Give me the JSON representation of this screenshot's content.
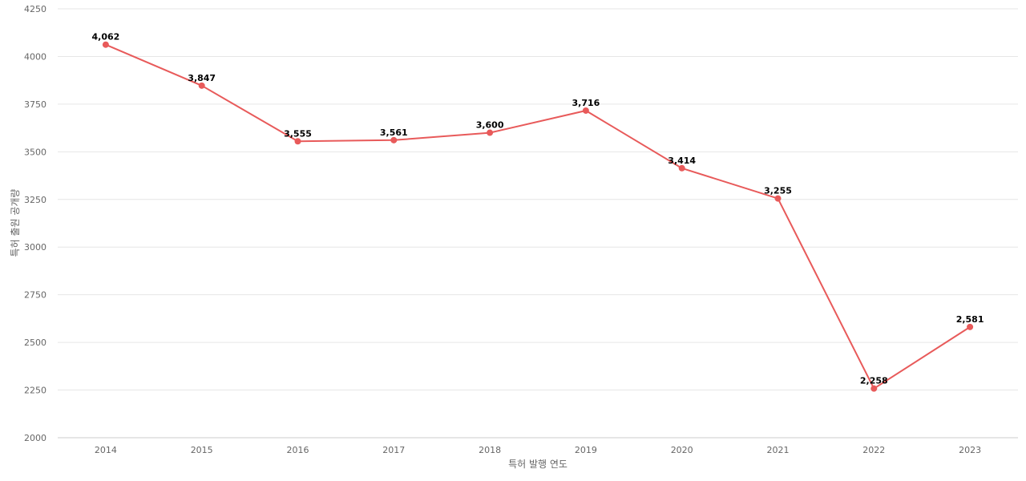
{
  "chart_data": {
    "type": "line",
    "xlabel": "특허 발행 연도",
    "ylabel": "특허 출원 공개량",
    "categories": [
      "2014",
      "2015",
      "2016",
      "2017",
      "2018",
      "2019",
      "2020",
      "2021",
      "2022",
      "2023"
    ],
    "series": [
      {
        "values": [
          4062,
          3847,
          3555,
          3561,
          3600,
          3716,
          3414,
          3255,
          2258,
          2581
        ],
        "data_labels": [
          "4,062",
          "3,847",
          "3,555",
          "3,561",
          "3,600",
          "3,716",
          "3,414",
          "3,255",
          "2,258",
          "2,581"
        ],
        "color": "#e85a5a"
      }
    ],
    "ylim": [
      2000,
      4250
    ],
    "yticks": [
      "2000",
      "2250",
      "2500",
      "2750",
      "3000",
      "3250",
      "3500",
      "3750",
      "4000",
      "4250"
    ],
    "grid": true,
    "legend": "none"
  }
}
